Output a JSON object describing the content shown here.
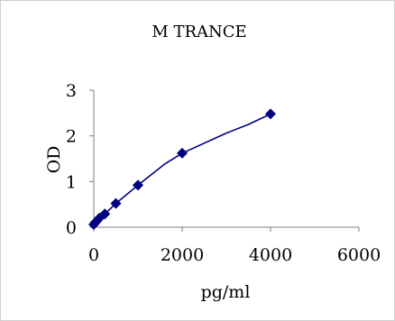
{
  "chart_data": {
    "type": "line",
    "title": "M TRANCE",
    "xlabel": "pg/ml",
    "ylabel": "OD",
    "xlim": [
      0,
      6000
    ],
    "ylim": [
      0,
      3
    ],
    "xticks": [
      0,
      2000,
      4000,
      6000
    ],
    "yticks": [
      0,
      1,
      2,
      3
    ],
    "grid": false,
    "series": [
      {
        "color": "#000080",
        "points": [
          {
            "x": 0,
            "y": 0.06
          },
          {
            "x": 31,
            "y": 0.1
          },
          {
            "x": 62.5,
            "y": 0.13
          },
          {
            "x": 125,
            "y": 0.2
          },
          {
            "x": 250,
            "y": 0.29
          },
          {
            "x": 500,
            "y": 0.52
          },
          {
            "x": 1000,
            "y": 0.92
          },
          {
            "x": 2000,
            "y": 1.62
          },
          {
            "x": 4000,
            "y": 2.48
          }
        ],
        "curve": [
          {
            "x": 0,
            "y": 0.06
          },
          {
            "x": 250,
            "y": 0.29
          },
          {
            "x": 500,
            "y": 0.52
          },
          {
            "x": 1000,
            "y": 0.92
          },
          {
            "x": 1600,
            "y": 1.38
          },
          {
            "x": 2000,
            "y": 1.62
          },
          {
            "x": 3000,
            "y": 2.06
          },
          {
            "x": 3500,
            "y": 2.25
          },
          {
            "x": 4000,
            "y": 2.48
          }
        ]
      }
    ]
  }
}
